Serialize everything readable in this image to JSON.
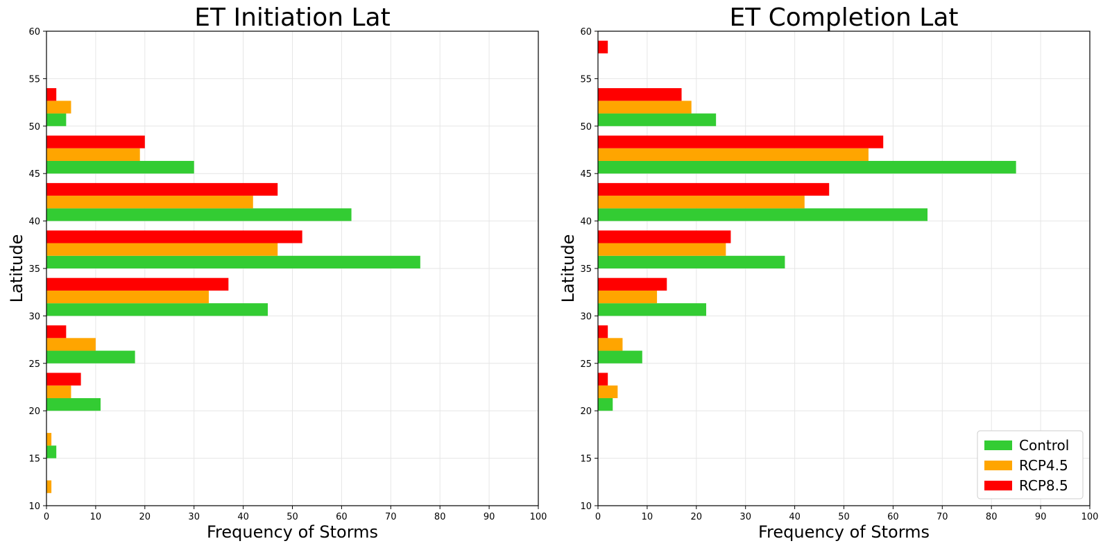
{
  "chart_data": [
    {
      "type": "bar",
      "orientation": "horizontal",
      "title": "ET Initiation Lat",
      "xlabel": "Frequency of Storms",
      "ylabel": "Latitude",
      "xlim": [
        0,
        100
      ],
      "ylim": [
        10,
        60
      ],
      "xticks": [
        "0",
        "10",
        "20",
        "30",
        "40",
        "50",
        "60",
        "70",
        "80",
        "90",
        "100"
      ],
      "yticks": [
        "10",
        "15",
        "20",
        "25",
        "30",
        "35",
        "40",
        "45",
        "50",
        "55",
        "60"
      ],
      "grid": true,
      "bin_edges_lower": [
        10,
        15,
        20,
        25,
        30,
        35,
        40,
        45,
        50
      ],
      "series": [
        {
          "name": "Control",
          "color": "#33cc33",
          "values": [
            0,
            2,
            11,
            18,
            45,
            76,
            62,
            30,
            4
          ]
        },
        {
          "name": "RCP4.5",
          "color": "#ffa500",
          "values": [
            1,
            1,
            5,
            10,
            33,
            47,
            42,
            19,
            5
          ]
        },
        {
          "name": "RCP8.5",
          "color": "#ff0000",
          "values": [
            0,
            0,
            7,
            4,
            37,
            52,
            47,
            20,
            2
          ]
        }
      ],
      "legend": null
    },
    {
      "type": "bar",
      "orientation": "horizontal",
      "title": "ET Completion Lat",
      "xlabel": "Frequency of Storms",
      "ylabel": "Latitude",
      "xlim": [
        0,
        100
      ],
      "ylim": [
        10,
        60
      ],
      "xticks": [
        "0",
        "10",
        "20",
        "30",
        "40",
        "50",
        "60",
        "70",
        "80",
        "90",
        "100"
      ],
      "yticks": [
        "10",
        "15",
        "20",
        "25",
        "30",
        "35",
        "40",
        "45",
        "50",
        "55",
        "60"
      ],
      "grid": true,
      "bin_edges_lower": [
        20,
        25,
        30,
        35,
        40,
        45,
        50,
        55
      ],
      "series": [
        {
          "name": "Control",
          "color": "#33cc33",
          "values": [
            3,
            9,
            22,
            38,
            67,
            85,
            24,
            0
          ]
        },
        {
          "name": "RCP4.5",
          "color": "#ffa500",
          "values": [
            4,
            5,
            12,
            26,
            42,
            55,
            19,
            0
          ]
        },
        {
          "name": "RCP8.5",
          "color": "#ff0000",
          "values": [
            2,
            2,
            14,
            27,
            47,
            58,
            17,
            2
          ]
        }
      ],
      "legend": "lower-right"
    }
  ]
}
